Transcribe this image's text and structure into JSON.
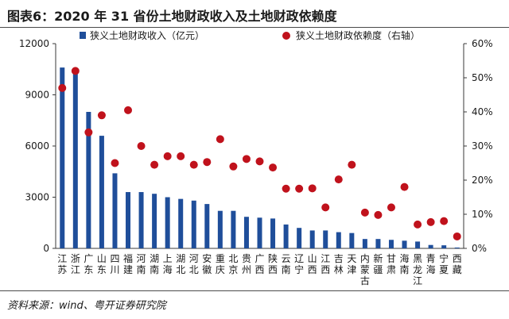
{
  "header": {
    "title": "图表6：2020 年 31 省份土地财政收入及土地财政依赖度"
  },
  "footer": {
    "source": "资料来源：wind、粤开证券研究院"
  },
  "colors": {
    "bar": "#1f4e9a",
    "dot": "#c0121c",
    "axis": "#3a3a3a"
  },
  "chart_data": {
    "type": "bar",
    "categories": [
      "江苏",
      "浙江",
      "广东",
      "山东",
      "四川",
      "福建",
      "河南",
      "湖南",
      "上海",
      "湖北",
      "河北",
      "安徽",
      "重庆",
      "北京",
      "贵州",
      "广西",
      "陕西",
      "云南",
      "辽宁",
      "山西",
      "江西",
      "吉林",
      "天津",
      "内蒙古",
      "新疆",
      "甘肃",
      "海南",
      "黑龙江",
      "青海",
      "宁夏",
      "西藏"
    ],
    "series": [
      {
        "name": "狭义土地财政收入（亿元）",
        "type": "bar",
        "axis": "left",
        "values": [
          10600,
          10400,
          8000,
          6600,
          4400,
          3300,
          3300,
          3200,
          3000,
          2900,
          2800,
          2600,
          2200,
          2200,
          1850,
          1800,
          1750,
          1400,
          1200,
          1050,
          1050,
          950,
          900,
          550,
          550,
          500,
          450,
          400,
          200,
          180,
          50
        ]
      },
      {
        "name": "狭义土地财政依赖度（右轴）",
        "type": "scatter",
        "axis": "right",
        "values": [
          47,
          52,
          34,
          39,
          25,
          40.5,
          30,
          24.5,
          27,
          27,
          24.5,
          25.3,
          32,
          24,
          26.2,
          25.5,
          23.7,
          17.5,
          17.5,
          17.6,
          12,
          20.2,
          24.5,
          10.5,
          9.8,
          12,
          18,
          7,
          7.7,
          8,
          3.5
        ]
      }
    ],
    "y_left": {
      "min": 0,
      "max": 12000,
      "ticks": [
        "0",
        "3000",
        "6000",
        "9000",
        "12000"
      ]
    },
    "y_right": {
      "min": 0,
      "max": 60,
      "ticks": [
        "0%",
        "10%",
        "20%",
        "30%",
        "40%",
        "50%",
        "60%"
      ]
    },
    "grid": false,
    "legend_position": "top"
  }
}
